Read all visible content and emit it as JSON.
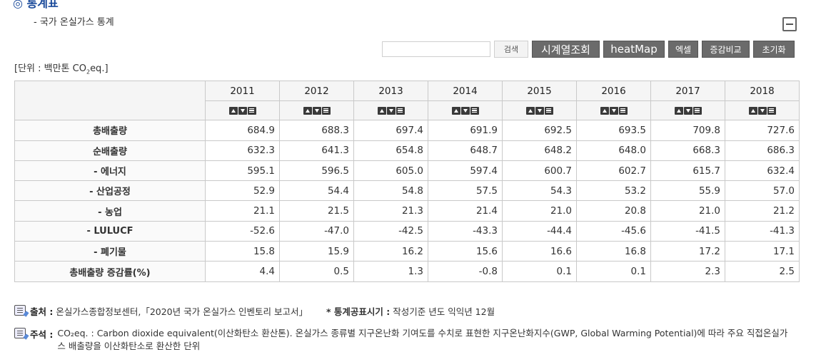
{
  "header": {
    "section_title_cut": "◎ 통계표",
    "subtitle": "- 국가 온실가스 통계"
  },
  "unit_label_prefix": "[단위 : 백만톤 CO",
  "unit_label_sub": "2",
  "unit_label_suffix": "eq.]",
  "toolbar": {
    "search_value": "",
    "search_label": "검색",
    "timeseries_label": "시계열조회",
    "heatmap_label": "heatMap",
    "excel_label": "엑셀",
    "compare_label": "증감비교",
    "reset_label": "초기화"
  },
  "table": {
    "years": [
      "2011",
      "2012",
      "2013",
      "2014",
      "2015",
      "2016",
      "2017",
      "2018"
    ],
    "rows": [
      {
        "label": "총배출량",
        "values": [
          "684.9",
          "688.3",
          "697.4",
          "691.9",
          "692.5",
          "693.5",
          "709.8",
          "727.6"
        ]
      },
      {
        "label": "순배출량",
        "values": [
          "632.3",
          "641.3",
          "654.8",
          "648.7",
          "648.2",
          "648.0",
          "668.3",
          "686.3"
        ]
      },
      {
        "label": "- 에너지",
        "values": [
          "595.1",
          "596.5",
          "605.0",
          "597.4",
          "600.7",
          "602.7",
          "615.7",
          "632.4"
        ]
      },
      {
        "label": "- 산업공정",
        "values": [
          "52.9",
          "54.4",
          "54.8",
          "57.5",
          "54.3",
          "53.2",
          "55.9",
          "57.0"
        ]
      },
      {
        "label": "- 농업",
        "values": [
          "21.1",
          "21.5",
          "21.3",
          "21.4",
          "21.0",
          "20.8",
          "21.0",
          "21.2"
        ]
      },
      {
        "label": "- LULUCF",
        "values": [
          "-52.6",
          "-47.0",
          "-42.5",
          "-43.3",
          "-44.4",
          "-45.6",
          "-41.5",
          "-41.3"
        ]
      },
      {
        "label": "- 폐기물",
        "values": [
          "15.8",
          "15.9",
          "16.2",
          "15.6",
          "16.6",
          "16.8",
          "17.2",
          "17.1"
        ]
      },
      {
        "label": "총배출량 증감률(%)",
        "values": [
          "4.4",
          "0.5",
          "1.3",
          "-0.8",
          "0.1",
          "0.1",
          "2.3",
          "2.5"
        ]
      }
    ]
  },
  "notes": {
    "source_label": "출처 :",
    "source_text": "온실가스종합정보센터,「2020년 국가 온실가스 인벤토리 보고서」",
    "release_label": "* 통계공표시기 :",
    "release_text": "작성기준 년도 익익년 12월",
    "remark_label": "주석 :",
    "remark_text": "CO₂eq. : Carbon dioxide equivalent(이산화탄소 환산톤). 온실가스 종류별 지구온난화 기여도를 수치로 표현한 지구온난화지수(GWP, Global Warming Potential)에 따라 주요 직접온실가스 배출량을 이산화탄소로 환산한 단위"
  },
  "icons": [
    "collapse-icon",
    "sort-asc-icon",
    "sort-desc-icon",
    "sort-menu-icon",
    "document-icon"
  ]
}
